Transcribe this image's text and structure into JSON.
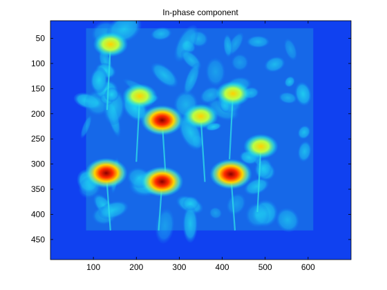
{
  "chart_data": {
    "type": "heatmap",
    "title": "In-phase component",
    "xlabel": "",
    "ylabel": "",
    "xlim": [
      0,
      700
    ],
    "ylim": [
      490,
      15
    ],
    "y_direction": "reversed",
    "xticks": [
      100,
      200,
      300,
      400,
      500,
      600
    ],
    "yticks": [
      50,
      100,
      150,
      200,
      250,
      300,
      350,
      400,
      450
    ],
    "grid": false,
    "colormap": "jet",
    "image_extent": {
      "x": [
        0,
        700
      ],
      "y": [
        15,
        490
      ]
    },
    "content_extent": {
      "x": [
        83,
        612
      ],
      "y": [
        30,
        432
      ]
    },
    "background_value_color": "#1041f0",
    "content_description_hotspots": [
      {
        "x": 140,
        "y": 62,
        "level": "high"
      },
      {
        "x": 130,
        "y": 318,
        "level": "peak"
      },
      {
        "x": 260,
        "y": 335,
        "level": "peak"
      },
      {
        "x": 260,
        "y": 213,
        "level": "peak"
      },
      {
        "x": 208,
        "y": 165,
        "level": "high"
      },
      {
        "x": 350,
        "y": 205,
        "level": "high"
      },
      {
        "x": 425,
        "y": 160,
        "level": "high"
      },
      {
        "x": 420,
        "y": 320,
        "level": "peak"
      },
      {
        "x": 490,
        "y": 265,
        "level": "high"
      }
    ]
  },
  "colors": {
    "axes_bg": "#ffffff",
    "frame": "#000000",
    "jet_low": "#0000bf",
    "jet_bg": "#1041f0",
    "jet_mid": "#00c8ff",
    "jet_high": "#ffd000",
    "jet_peak": "#c00000"
  }
}
